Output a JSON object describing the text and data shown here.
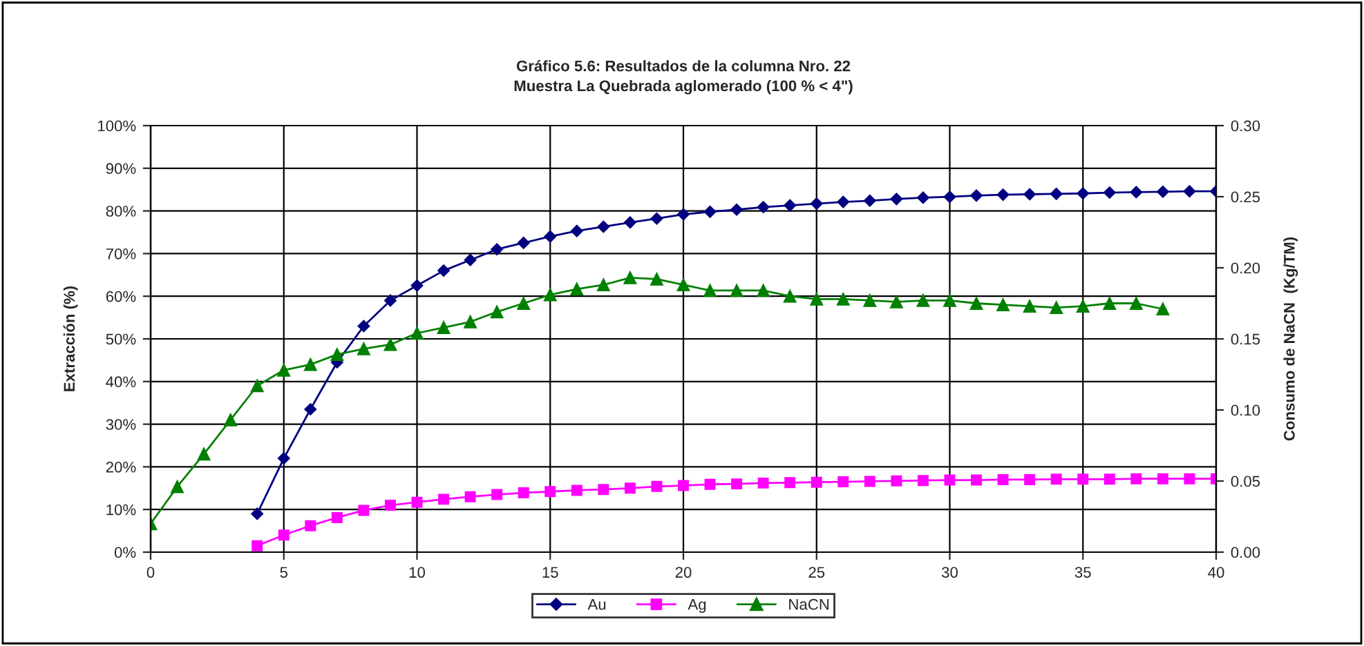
{
  "chart_data": {
    "type": "line",
    "title": "Gráfico 5.6: Resultados de la columna Nro. 22\nMuestra La Quebrada aglomerado (100 % < 4\")",
    "ylabel": "Extracción (%)",
    "y2label": "Consumo de NaCN  (Kg/TM)",
    "xlim": [
      0,
      40
    ],
    "xticks": [
      0,
      5,
      10,
      15,
      20,
      25,
      30,
      35,
      40
    ],
    "ylim": [
      0,
      100
    ],
    "yticks": [
      {
        "value": 0,
        "label": "0%"
      },
      {
        "value": 10,
        "label": "10%"
      },
      {
        "value": 20,
        "label": "20%"
      },
      {
        "value": 30,
        "label": "30%"
      },
      {
        "value": 40,
        "label": "40%"
      },
      {
        "value": 50,
        "label": "50%"
      },
      {
        "value": 60,
        "label": "60%"
      },
      {
        "value": 70,
        "label": "70%"
      },
      {
        "value": 80,
        "label": "80%"
      },
      {
        "value": 90,
        "label": "90%"
      },
      {
        "value": 100,
        "label": "100%"
      }
    ],
    "y2lim": [
      0,
      0.3
    ],
    "y2ticks": [
      {
        "value": 0,
        "label": "0.00"
      },
      {
        "value": 0.05,
        "label": "0.05"
      },
      {
        "value": 0.1,
        "label": "0.10"
      },
      {
        "value": 0.15,
        "label": "0.15"
      },
      {
        "value": 0.2,
        "label": "0.20"
      },
      {
        "value": 0.25,
        "label": "0.25"
      },
      {
        "value": 0.3,
        "label": "0.30"
      }
    ],
    "grid": true,
    "legend": "bottom",
    "series": [
      {
        "name": "Au",
        "color": "#000080",
        "marker": "diamond",
        "x": [
          4,
          5,
          6,
          7,
          8,
          9,
          10,
          11,
          12,
          13,
          14,
          15,
          16,
          17,
          18,
          19,
          20,
          21,
          22,
          23,
          24,
          25,
          26,
          27,
          28,
          29,
          30,
          31,
          32,
          33,
          34,
          35,
          36,
          37,
          38,
          39,
          40
        ],
        "values": [
          9,
          22,
          33.5,
          44.5,
          53,
          59,
          62.5,
          66,
          68.5,
          71,
          72.5,
          74,
          75.3,
          76.3,
          77.3,
          78.2,
          79.2,
          79.8,
          80.3,
          80.9,
          81.3,
          81.7,
          82.1,
          82.4,
          82.8,
          83.1,
          83.3,
          83.6,
          83.8,
          83.9,
          84.0,
          84.1,
          84.3,
          84.4,
          84.5,
          84.6,
          84.6
        ]
      },
      {
        "name": "Ag",
        "color": "#ff00ff",
        "marker": "square",
        "x": [
          4,
          5,
          6,
          7,
          8,
          9,
          10,
          11,
          12,
          13,
          14,
          15,
          16,
          17,
          18,
          19,
          20,
          21,
          22,
          23,
          24,
          25,
          26,
          27,
          28,
          29,
          30,
          31,
          32,
          33,
          34,
          35,
          36,
          37,
          38,
          39,
          40
        ],
        "values": [
          1.5,
          4,
          6.2,
          8.1,
          9.8,
          11,
          11.7,
          12.4,
          13,
          13.5,
          13.9,
          14.2,
          14.5,
          14.7,
          15,
          15.4,
          15.6,
          15.9,
          16,
          16.2,
          16.3,
          16.4,
          16.5,
          16.6,
          16.7,
          16.8,
          16.9,
          16.9,
          17,
          17,
          17.1,
          17.1,
          17.1,
          17.2,
          17.2,
          17.2,
          17.2
        ]
      },
      {
        "name": "NaCN",
        "color": "#008000",
        "marker": "triangle",
        "axis": "y2",
        "x": [
          0,
          1,
          2,
          3,
          4,
          5,
          6,
          7,
          8,
          9,
          10,
          11,
          12,
          13,
          14,
          15,
          16,
          17,
          18,
          19,
          20,
          21,
          22,
          23,
          24,
          25,
          26,
          27,
          28,
          29,
          30,
          31,
          32,
          33,
          34,
          35,
          36,
          37,
          38
        ],
        "values": [
          0.02,
          0.046,
          0.069,
          0.093,
          0.117,
          0.128,
          0.132,
          0.139,
          0.143,
          0.146,
          0.154,
          0.158,
          0.162,
          0.169,
          0.175,
          0.181,
          0.185,
          0.188,
          0.193,
          0.192,
          0.188,
          0.184,
          0.184,
          0.184,
          0.18,
          0.178,
          0.178,
          0.177,
          0.176,
          0.177,
          0.177,
          0.175,
          0.174,
          0.173,
          0.172,
          0.173,
          0.175,
          0.175,
          0.171
        ]
      }
    ]
  }
}
